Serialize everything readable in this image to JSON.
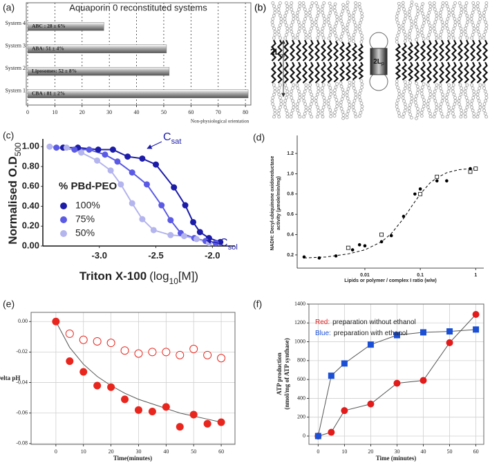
{
  "chart_data": [
    {
      "type": "bar",
      "orientation": "horizontal",
      "label": "(a)",
      "title": "Aquaporin 0 reconstituted systems",
      "categories": [
        "System 1",
        "System 2",
        "System 3",
        "System 4"
      ],
      "values": [
        81,
        52,
        51,
        28
      ],
      "value_labels": [
        "CBA : 81 ± 2%",
        "Liposomes: 52 ± 8%",
        "ABA: 51 ± 4%",
        "ABC : 28 ± 6%"
      ],
      "color": "#a8a8a8",
      "xlim": [
        0,
        82
      ],
      "xticks": [
        0,
        10,
        20,
        30,
        40,
        50,
        60,
        70,
        80
      ],
      "grid": true,
      "grid_style": "dotted",
      "annotation": "Non-physiological orientation"
    },
    {
      "type": "line",
      "label": "(c)",
      "xlabel": [
        {
          "text": "Triton X-100"
        },
        {
          "text": "(log",
          "style": "normal"
        },
        {
          "text": "10",
          "style": "sub"
        },
        {
          "text": "[M])",
          "style": "normal"
        }
      ],
      "ylabel": [
        {
          "text": "Normalised O.D"
        },
        {
          "text": "500",
          "style": "sub"
        }
      ],
      "xlim": [
        -3.5,
        -1.8
      ],
      "xticks": [
        {
          "value": -3,
          "label": "-3.0"
        },
        -2.5,
        {
          "value": -2,
          "label": "-2.0"
        }
      ],
      "ylim": [
        0,
        1.05
      ],
      "yticks": [
        {
          "value": 0,
          "label": "0.00"
        },
        {
          "value": 0.2,
          "label": "0.20"
        },
        {
          "value": 0.4,
          "label": "0.40"
        },
        {
          "value": 0.6,
          "label": "0.60"
        },
        {
          "value": 0.8,
          "label": "0.80"
        },
        {
          "value": 1,
          "label": "1.00"
        }
      ],
      "legend_title": "% PBd-PEO",
      "legend": "left",
      "series": [
        {
          "name": "100%",
          "color": "#1c1ca8",
          "marker": "circle",
          "line": "solid",
          "x": [
            -3.32,
            -3.19,
            -3.01,
            -2.88,
            -2.75,
            -2.62,
            -2.5,
            -2.34,
            -2.24,
            -2.17,
            -2.11,
            -2.03,
            -1.93
          ],
          "values": [
            0.99,
            0.99,
            0.97,
            0.97,
            0.9,
            0.88,
            0.82,
            0.59,
            0.41,
            0.24,
            0.14,
            0.08,
            0.04
          ]
        },
        {
          "name": "75%",
          "color": "#5a5ae6",
          "marker": "circle",
          "line": "solid",
          "x": [
            -3.38,
            -3.22,
            -3.09,
            -2.95,
            -2.84,
            -2.71,
            -2.58,
            -2.45,
            -2.37,
            -2.28,
            -2.16,
            -2.06,
            -1.97
          ],
          "values": [
            0.99,
            0.97,
            0.97,
            0.92,
            0.85,
            0.74,
            0.62,
            0.41,
            0.26,
            0.13,
            0.08,
            0.05,
            0.03
          ]
        },
        {
          "name": "50%",
          "color": "#b4b4ee",
          "marker": "circle",
          "line": "solid",
          "x": [
            -3.44,
            -3.29,
            -3.16,
            -3.02,
            -2.9,
            -2.81,
            -2.71,
            -2.62,
            -2.52,
            -2.37,
            -2.25,
            -2.14,
            -2.03
          ],
          "values": [
            1,
            0.99,
            0.94,
            0.86,
            0.76,
            0.62,
            0.43,
            0.27,
            0.16,
            0.11,
            0.1,
            0.07,
            0.03
          ]
        }
      ],
      "annotations": [
        [
          {
            "text": "C"
          },
          {
            "text": "sat",
            "style": "sub"
          }
        ],
        [
          {
            "text": "C"
          },
          {
            "text": "sol",
            "style": "sub"
          }
        ]
      ],
      "annotation_color": "#1c1ca8"
    },
    {
      "type": "scatter",
      "label": "(d)",
      "xscale": "log",
      "xlabel": "Lipids or polymer / complex I ratio (w/w)",
      "ylabel": [
        "NADH: Decyl-ubiquinone oxidoreductase",
        "activity (µmole/min/mg)"
      ],
      "xlim": [
        0.0006,
        1.4
      ],
      "xticks": [
        0.01,
        0.1,
        1
      ],
      "ylim": [
        0.07,
        1.35
      ],
      "yticks": [
        0.2,
        0.4,
        0.6,
        0.8,
        {
          "value": 1,
          "label": "1.0"
        },
        1.2
      ],
      "series": [
        {
          "color": "#000000",
          "marker": "circle",
          "line": "none",
          "x": [
            0.0008,
            0.0015,
            0.003,
            0.006,
            0.008,
            0.01,
            0.02,
            0.03,
            0.05,
            0.08,
            0.1,
            0.2,
            0.3,
            0.8
          ],
          "values": [
            0.18,
            0.17,
            0.19,
            0.25,
            0.3,
            0.29,
            0.33,
            0.39,
            0.58,
            0.8,
            0.85,
            0.93,
            0.93,
            1.05
          ]
        },
        {
          "color": "#000000",
          "marker": "open-square",
          "line": "none",
          "x": [
            0.005,
            0.02,
            0.1,
            0.2,
            0.8,
            1
          ],
          "values": [
            0.27,
            0.4,
            0.8,
            0.97,
            1.02,
            1.05
          ]
        },
        {
          "color": "#000000",
          "marker": "none",
          "line": "dashed",
          "x": [
            0.0008,
            0.002,
            0.005,
            0.01,
            0.02,
            0.03,
            0.05,
            0.07,
            0.1,
            0.15,
            0.2,
            0.3,
            0.5,
            0.8,
            1
          ],
          "values": [
            0.17,
            0.18,
            0.21,
            0.25,
            0.33,
            0.41,
            0.56,
            0.68,
            0.8,
            0.91,
            0.96,
            1.01,
            1.04,
            1.05,
            1.05
          ]
        }
      ]
    },
    {
      "type": "scatter",
      "label": "(e)",
      "xlabel": "Time(minutes)",
      "ylabel": "Delta pH",
      "xlim": [
        -9,
        65
      ],
      "xticks": [
        0,
        10,
        20,
        30,
        40,
        50,
        60
      ],
      "ylim": [
        -0.0805,
        0.006
      ],
      "yticks": [
        {
          "value": 0,
          "label": "0.00"
        },
        -0.02,
        -0.04,
        -0.06,
        -0.08
      ],
      "grid": true,
      "grid_style": "solid",
      "series": [
        {
          "color": "#555555",
          "marker": "none",
          "line": "solid",
          "x": [
            0,
            5,
            10,
            15,
            20,
            25,
            30,
            35,
            40,
            45,
            50,
            55,
            60
          ],
          "values": [
            0,
            -0.017,
            -0.028,
            -0.036,
            -0.042,
            -0.047,
            -0.051,
            -0.054,
            -0.057,
            -0.06,
            -0.062,
            -0.064,
            -0.066
          ]
        },
        {
          "color": "#e8261e",
          "marker": "circle",
          "line": "none",
          "x": [
            0,
            5,
            10,
            15,
            20,
            25,
            30,
            35,
            40,
            45,
            50,
            55,
            60
          ],
          "values": [
            0,
            -0.026,
            -0.033,
            -0.042,
            -0.043,
            -0.051,
            -0.058,
            -0.059,
            -0.056,
            -0.069,
            -0.061,
            -0.067,
            -0.066
          ]
        },
        {
          "color": "#e8261e",
          "marker": "open-circle",
          "line": "none",
          "x": [
            5,
            10,
            15,
            20,
            25,
            30,
            35,
            40,
            45,
            50,
            55,
            60
          ],
          "values": [
            -0.008,
            -0.012,
            -0.013,
            -0.014,
            -0.019,
            -0.021,
            -0.02,
            -0.02,
            -0.022,
            -0.018,
            -0.022,
            -0.024
          ]
        }
      ]
    },
    {
      "type": "scatter",
      "label": "(f)",
      "xlabel": "Time (minutes)",
      "ylabel": [
        "ATP production",
        "(nmol/mg of ATP synthase)"
      ],
      "x": [
        0,
        5,
        10,
        20,
        30,
        40,
        50,
        60
      ],
      "xlim": [
        -3.5,
        63
      ],
      "xticks": [
        0,
        10,
        20,
        30,
        40,
        50,
        60
      ],
      "ylim": [
        -88,
        1400
      ],
      "yticks": [
        0,
        200,
        400,
        600,
        800,
        1000,
        1200,
        1400
      ],
      "grid": true,
      "grid_style": "solid",
      "series": [
        {
          "color": "#e21b1b",
          "line_color": "#555555",
          "marker": "circle",
          "line": "solid",
          "values": [
            0,
            40,
            270,
            340,
            560,
            590,
            990,
            1290
          ]
        },
        {
          "color": "#1a4fd6",
          "line_color": "#555555",
          "marker": "square",
          "line": "solid",
          "values": [
            0,
            640,
            770,
            970,
            1070,
            1100,
            1110,
            1130
          ]
        }
      ],
      "annotations": [
        [
          {
            "text": "Red:",
            "color": "#e21b1b"
          },
          {
            "text": "preparation without ethanol"
          }
        ],
        [
          {
            "text": "Blue:",
            "color": "#1a4fd6"
          },
          {
            "text": "preparation with ethanol"
          }
        ]
      ]
    }
  ],
  "diagram": {
    "label": "(b)",
    "membrane_thickness": [
      {
        "text": "2L"
      },
      {
        "text": "m",
        "style": "sub"
      }
    ],
    "protein_length": [
      {
        "text": "2L"
      },
      {
        "text": "p",
        "style": "sub"
      }
    ]
  }
}
